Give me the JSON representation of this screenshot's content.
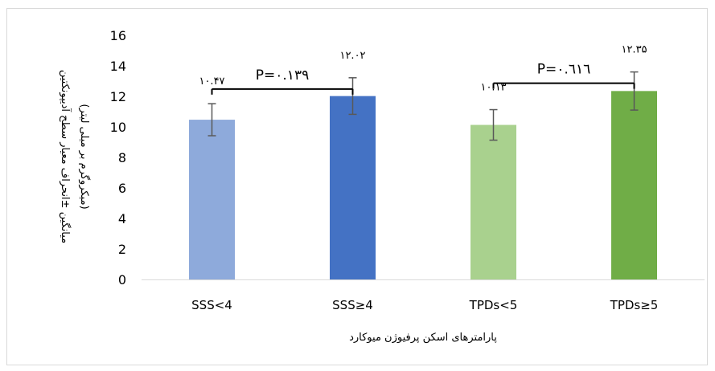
{
  "chart_data": {
    "type": "bar",
    "categories": [
      "SSS<4",
      "SSS≥4",
      "TPDs<5",
      "TPDs≥5"
    ],
    "values": [
      10.47,
      12.02,
      10.13,
      12.35
    ],
    "errors": [
      1.05,
      1.2,
      1.0,
      1.25
    ],
    "data_labels": [
      "۱۰.۴۷",
      "۱۲.۰۲",
      "۱۰.۱۳",
      "۱۲.۳۵"
    ],
    "colors": [
      "#8eaadb",
      "#4472c4",
      "#a9d18e",
      "#70ad47"
    ],
    "ylim": [
      0,
      16
    ],
    "yticks": [
      "0",
      "2",
      "4",
      "6",
      "8",
      "10",
      "12",
      "14",
      "16"
    ],
    "xlabel": "پارامترهای اسکن پرفیوژن میوکارد",
    "ylabel_line1": "میانگین ±انحراف معیار سطح آدیپونکتین",
    "ylabel_line2": "(میکروگرم بر میلی لیتر)",
    "comparisons": [
      {
        "from": 0,
        "to": 1,
        "label": "P=۰.۱۳۹"
      },
      {
        "from": 2,
        "to": 3,
        "label": "P=۰.٦١٦"
      }
    ],
    "grid": false,
    "legend": "none"
  }
}
